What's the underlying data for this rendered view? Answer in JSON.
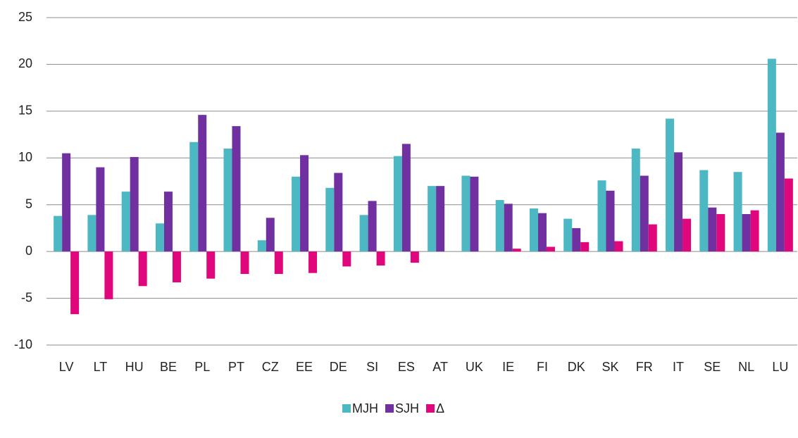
{
  "chart_data": {
    "type": "bar",
    "categories": [
      "LV",
      "LT",
      "HU",
      "BE",
      "PL",
      "PT",
      "CZ",
      "EE",
      "DE",
      "SI",
      "ES",
      "AT",
      "UK",
      "IE",
      "FI",
      "DK",
      "SK",
      "FR",
      "IT",
      "SE",
      "NL",
      "LU"
    ],
    "series": [
      {
        "name": "MJH",
        "color": "#4bb8c4",
        "values": [
          3.8,
          3.9,
          6.4,
          3.0,
          11.7,
          11.0,
          1.2,
          8.0,
          6.8,
          3.9,
          10.2,
          7.0,
          8.1,
          5.5,
          4.6,
          3.5,
          7.6,
          11.0,
          14.2,
          8.7,
          8.5,
          20.6
        ]
      },
      {
        "name": "SJH",
        "color": "#7030a0",
        "values": [
          10.5,
          9.0,
          10.1,
          6.4,
          14.6,
          13.4,
          3.6,
          10.3,
          8.4,
          5.4,
          11.5,
          7.0,
          8.0,
          5.1,
          4.1,
          2.5,
          6.5,
          8.1,
          10.6,
          4.7,
          4.0,
          12.7
        ]
      },
      {
        "name": "Δ",
        "color": "#e0077d",
        "values": [
          -6.7,
          -5.1,
          -3.7,
          -3.3,
          -2.9,
          -2.4,
          -2.4,
          -2.3,
          -1.6,
          -1.5,
          -1.2,
          0,
          0,
          0.3,
          0.5,
          1.0,
          1.1,
          2.9,
          3.5,
          4.0,
          4.4,
          7.8
        ]
      }
    ],
    "ylim": [
      -10,
      25
    ],
    "yticks": [
      -10,
      -5,
      0,
      5,
      10,
      15,
      20,
      25
    ],
    "grid": true,
    "legend": "bottom"
  }
}
